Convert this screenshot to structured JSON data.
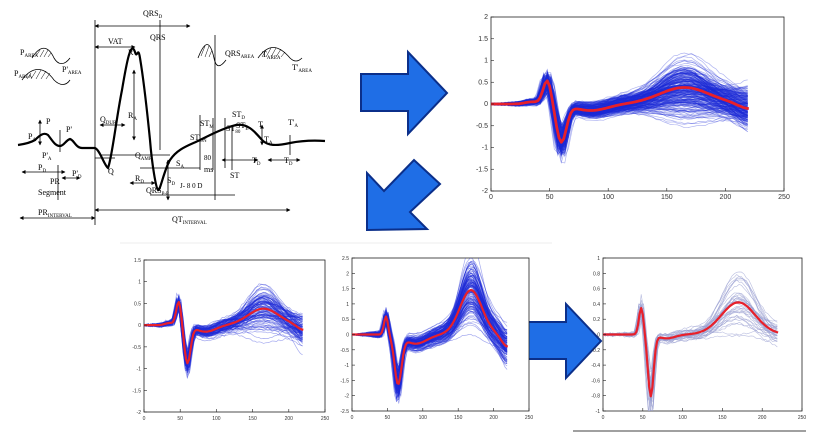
{
  "colors": {
    "arrow_fill": "#1f6ee6",
    "arrow_stroke": "#0b2f8a",
    "trace": "#1e2bd6",
    "trace_light": "#9a9fd2",
    "mean": "#e8202a",
    "ink": "#000000"
  },
  "ecg_labels": {
    "qrs_d": "QRS",
    "qrs_d_sub": "D",
    "vat": "VAT",
    "qrs": "QRS",
    "r": "R",
    "p_area": "P",
    "p_area_sub": "AREA",
    "p_area2": "P",
    "p_area2_sub": "AREA",
    "pp_area": "P'",
    "pp_area_sub": "AREA",
    "qrs_area": "QRS",
    "qrs_area_sub": "AREA",
    "t_area": "T",
    "t_area_sub": "AREA",
    "tp_area": "T'",
    "tp_area_sub": "AREA",
    "p": "P",
    "pp": "P'",
    "pa": "P",
    "pa_sub": "A",
    "ppa": "P'",
    "ppa_sub": "A",
    "q_dur": "Q",
    "q_dur_sub": "DUR",
    "ra": "R",
    "ra_sub": "A",
    "q_amp": "Q",
    "q_amp_sub": "AMP",
    "q": "Q",
    "pd": "P",
    "pd_sub": "D",
    "ppd": "P'",
    "ppd_sub": "D",
    "pr": "PR",
    "segment": "Segment",
    "rd": "R",
    "rd_sub": "D",
    "qrs_pp": "QRS",
    "qrs_pp_sub": "P-P",
    "sa": "S",
    "sa_sub": "A",
    "sd": "S",
    "sd_sub": "D",
    "stm": "ST",
    "stm_sub": "M",
    "ston": "ST",
    "ston_sub": "ON",
    "std": "ST",
    "std_sub": "D",
    "st80": "ST",
    "st80_sub": "80",
    "ste": "ST",
    "ste_sub": "E",
    "t": "T",
    "ta": "T",
    "ta_sub": "A",
    "tpa": "T'",
    "tpa_sub": "A",
    "td": "T",
    "td_sub": "D",
    "tpd": "T",
    "tpd_sub": "D",
    "ms80": "80",
    "ms": "ms",
    "st": "ST",
    "j": "J",
    "jdots": "- 8 0 D",
    "pr_interval": "PR",
    "pr_interval_sub": "INTERVAL",
    "qt_interval": "QT",
    "qt_interval_sub": "INTERVAL"
  },
  "plots": {
    "big": {
      "x_ticks": [
        "0",
        "50",
        "100",
        "150",
        "200",
        "250"
      ],
      "y_ticks": [
        "2",
        "1.5",
        "1",
        "0.5",
        "0",
        "-0.5",
        "-1",
        "-1.5",
        "-2"
      ]
    },
    "mid_left": {
      "x_ticks": [
        "0",
        "50",
        "100",
        "150",
        "200",
        "250"
      ],
      "y_ticks": [
        "1.5",
        "1",
        "0.5",
        "0",
        "-0.5",
        "-1",
        "-1.5",
        "-2"
      ]
    },
    "mid_center": {
      "x_ticks": [
        "0",
        "50",
        "100",
        "150",
        "200",
        "250"
      ],
      "y_ticks": [
        "2.5",
        "2",
        "1.5",
        "1",
        "0.5",
        "0",
        "-0.5",
        "-1",
        "-1.5",
        "-2",
        "-2.5"
      ]
    },
    "right": {
      "x_ticks": [
        "0",
        "50",
        "100",
        "150",
        "200",
        "250"
      ],
      "y_ticks": [
        "1",
        "0.8",
        "0.6",
        "0.4",
        "0.2",
        "0",
        "-0.2",
        "-0.4",
        "-0.6",
        "-0.8",
        "-1"
      ]
    }
  }
}
